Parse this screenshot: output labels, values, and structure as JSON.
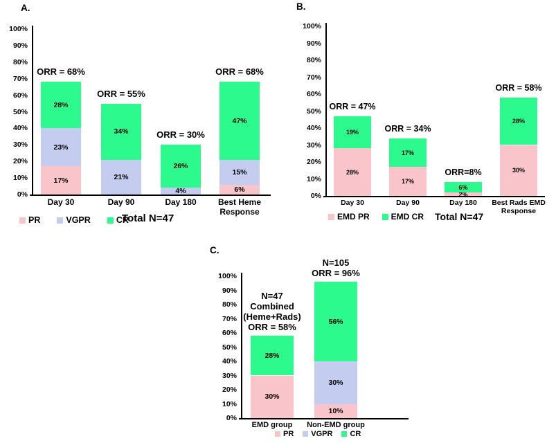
{
  "figure_title": "Three-panel stacked bar figure of response rates",
  "colors": {
    "pr_pink": "#F9C5CA",
    "vgpr_lavender": "#C4CDF0",
    "cr_green": "#2DFA8C",
    "axis_black": "#000000",
    "text_black": "#000000",
    "background": "#FFFFFF"
  },
  "chart_data": [
    {
      "type": "bar",
      "stacked": true,
      "panel_label": "A.",
      "title": "",
      "xlabel": "",
      "ylabel": "",
      "ylim": [
        0,
        100
      ],
      "grid": false,
      "yticks": [
        "0%",
        "10%",
        "20%",
        "30%",
        "40%",
        "50%",
        "60%",
        "70%",
        "80%",
        "90%",
        "100%"
      ],
      "categories": [
        "Day 30",
        "Day 90",
        "Day 180",
        "Best Heme Response"
      ],
      "series": [
        {
          "name": "PR",
          "color": "#F9C5CA",
          "values": [
            17,
            0,
            0,
            6
          ]
        },
        {
          "name": "VGPR",
          "color": "#C4CDF0",
          "values": [
            23,
            21,
            4,
            15
          ]
        },
        {
          "name": "CR",
          "color": "#2DFA8C",
          "values": [
            28,
            34,
            26,
            47
          ]
        }
      ],
      "bar_totals": [
        68,
        55,
        30,
        68
      ],
      "value_suffix": "%",
      "annotations": [
        [
          "ORR = 68%"
        ],
        [
          "ORR = 55%"
        ],
        [
          "ORR = 30%"
        ],
        [
          "ORR = 68%"
        ]
      ],
      "legend": [
        "PR",
        "VGPR",
        "CR"
      ],
      "legend_position": "bottom-left",
      "note": "Total N=47"
    },
    {
      "type": "bar",
      "stacked": true,
      "panel_label": "B.",
      "title": "",
      "xlabel": "",
      "ylabel": "",
      "ylim": [
        0,
        100
      ],
      "grid": false,
      "yticks": [
        "0%",
        "10%",
        "20%",
        "30%",
        "40%",
        "50%",
        "60%",
        "70%",
        "80%",
        "90%",
        "100%"
      ],
      "categories": [
        "Day 30",
        "Day 90",
        "Day 180",
        "Best Rads EMD Response"
      ],
      "series": [
        {
          "name": "EMD PR",
          "color": "#F9C5CA",
          "values": [
            28,
            17,
            2,
            30
          ]
        },
        {
          "name": "EMD CR",
          "color": "#2DFA8C",
          "values": [
            19,
            17,
            6,
            28
          ]
        }
      ],
      "bar_totals": [
        47,
        34,
        8,
        58
      ],
      "value_suffix": "%",
      "annotations": [
        [
          "ORR = 47%"
        ],
        [
          "ORR = 34%"
        ],
        [
          "ORR=8%"
        ],
        [
          "ORR = 58%"
        ]
      ],
      "legend": [
        "EMD PR",
        "EMD CR"
      ],
      "legend_position": "bottom-left",
      "note": "Total N=47"
    },
    {
      "type": "bar",
      "stacked": true,
      "panel_label": "C.",
      "title": "",
      "xlabel": "",
      "ylabel": "",
      "ylim": [
        0,
        100
      ],
      "grid": false,
      "yticks": [
        "0%",
        "10%",
        "20%",
        "30%",
        "40%",
        "50%",
        "60%",
        "70%",
        "80%",
        "90%",
        "100%"
      ],
      "categories": [
        "EMD group",
        "Non-EMD group"
      ],
      "series": [
        {
          "name": "PR",
          "color": "#F9C5CA",
          "values": [
            30,
            10
          ]
        },
        {
          "name": "VGPR",
          "color": "#C4CDF0",
          "values": [
            0,
            30
          ]
        },
        {
          "name": "CR",
          "color": "#2DFA8C",
          "values": [
            28,
            56
          ]
        }
      ],
      "bar_totals": [
        58,
        96
      ],
      "value_suffix": "%",
      "annotations": [
        [
          "N=47",
          "Combined",
          "(Heme+Rads)",
          "ORR = 58%"
        ],
        [
          "N=105",
          "ORR = 96%"
        ]
      ],
      "legend": [
        "PR",
        "VGPR",
        "CR"
      ],
      "legend_position": "bottom-center",
      "note": ""
    }
  ]
}
